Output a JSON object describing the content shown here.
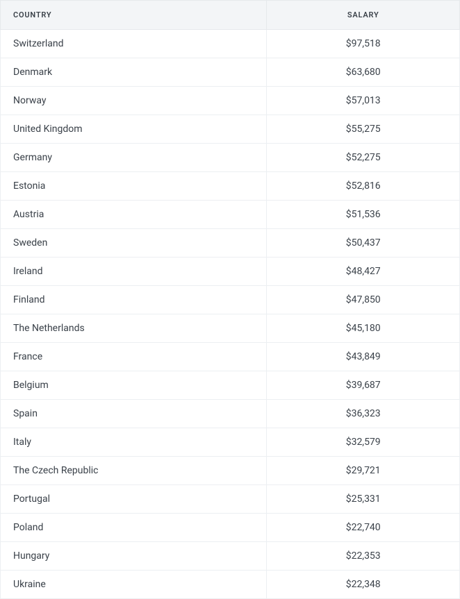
{
  "table": {
    "columns": [
      "COUNTRY",
      "SALARY"
    ],
    "rows": [
      {
        "country": "Switzerland",
        "salary": "$97,518"
      },
      {
        "country": "Denmark",
        "salary": "$63,680"
      },
      {
        "country": "Norway",
        "salary": "$57,013"
      },
      {
        "country": "United Kingdom",
        "salary": "$55,275"
      },
      {
        "country": "Germany",
        "salary": "$52,275"
      },
      {
        "country": "Estonia",
        "salary": "$52,816"
      },
      {
        "country": "Austria",
        "salary": "$51,536"
      },
      {
        "country": "Sweden",
        "salary": "$50,437"
      },
      {
        "country": "Ireland",
        "salary": "$48,427"
      },
      {
        "country": "Finland",
        "salary": "$47,850"
      },
      {
        "country": "The Netherlands",
        "salary": "$45,180"
      },
      {
        "country": "France",
        "salary": "$43,849"
      },
      {
        "country": "Belgium",
        "salary": "$39,687"
      },
      {
        "country": "Spain",
        "salary": "$36,323"
      },
      {
        "country": "Italy",
        "salary": "$32,579"
      },
      {
        "country": "The Czech Republic",
        "salary": "$29,721"
      },
      {
        "country": "Portugal",
        "salary": "$25,331"
      },
      {
        "country": "Poland",
        "salary": "$22,740"
      },
      {
        "country": "Hungary",
        "salary": "$22,353"
      },
      {
        "country": "Ukraine",
        "salary": "$22,348"
      }
    ],
    "header_bg": "#f3f5f7",
    "header_text_color": "#3a4149",
    "row_border_color": "#eceff2",
    "body_text_color": "#3a4149",
    "header_font_size": 11,
    "body_font_size": 14,
    "column_widths_pct": [
      58,
      42
    ],
    "column_align": [
      "left",
      "center"
    ]
  }
}
